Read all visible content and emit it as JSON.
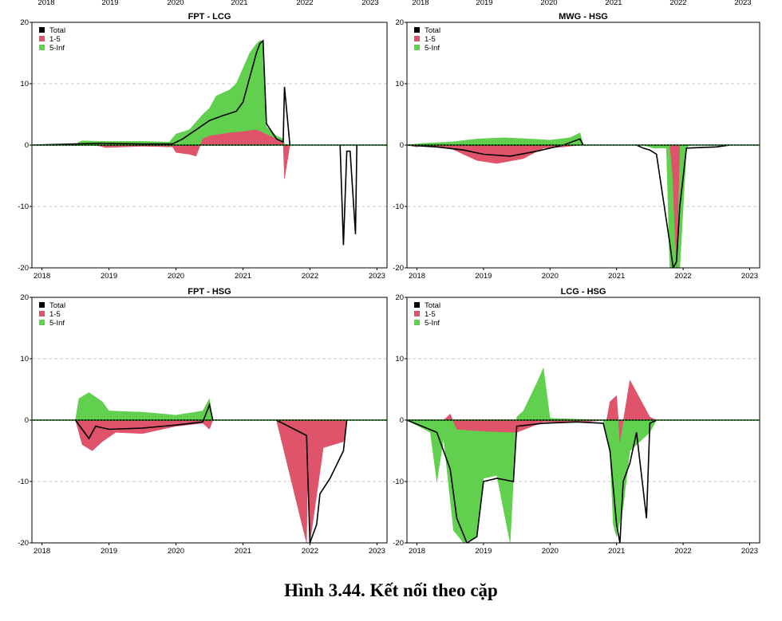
{
  "figure": {
    "caption": "Hình 3.44. Kết nối theo cặp",
    "top_strip_labels": [
      "2018",
      "2019",
      "2020",
      "2021",
      "2022",
      "2023",
      "2018",
      "2019",
      "2020",
      "2021",
      "2022",
      "2023"
    ]
  },
  "colors": {
    "Total": "#000000",
    "1-5": "#df536b",
    "5-Inf": "#61d04f",
    "grid": "#c8c8c8",
    "zero_line": "#0a9b0a"
  },
  "chart_data": [
    {
      "type": "area",
      "title": "FPT - LCG",
      "x_ticks": [
        "2018",
        "2019",
        "2020",
        "2021",
        "2022",
        "2023"
      ],
      "y_ticks": [
        "20",
        "10",
        "0",
        "-10",
        "-20"
      ],
      "ylim": [
        -20,
        20
      ],
      "xlim": [
        2017.85,
        2023.15
      ],
      "grid": "horizontal dashed",
      "legend": [
        "Total",
        "1-5",
        "5-Inf"
      ],
      "legend_position": "top-left",
      "series": [
        {
          "name": "5-Inf",
          "x": [
            2017.85,
            2018.5,
            2018.55,
            2018.6,
            2018.9,
            2019.5,
            2019.9,
            2020.0,
            2020.2,
            2020.4,
            2020.5,
            2020.6,
            2020.8,
            2020.9,
            2021.0,
            2021.1,
            2021.2,
            2021.25,
            2021.3,
            2021.35,
            2021.5,
            2021.6,
            2021.62,
            2021.7,
            2022.5,
            2022.7,
            2023.15
          ],
          "y": [
            0,
            0,
            0.5,
            0.7,
            0.6,
            0.6,
            0.5,
            1.8,
            2.5,
            5.0,
            6.0,
            8.0,
            9.0,
            10.0,
            12.5,
            15.0,
            16.5,
            17.0,
            17.0,
            3.0,
            1.5,
            1.0,
            0.2,
            0,
            0,
            0,
            0
          ]
        },
        {
          "name": "1-5",
          "x": [
            2017.85,
            2018.8,
            2018.95,
            2019.5,
            2019.95,
            2020.0,
            2020.2,
            2020.3,
            2020.4,
            2020.5,
            2020.8,
            2021.0,
            2021.2,
            2021.3,
            2021.5,
            2021.6,
            2021.62,
            2021.7,
            2022.5,
            2023.15
          ],
          "y": [
            0,
            0,
            -0.4,
            -0.2,
            -0.3,
            -1.2,
            -1.5,
            -1.8,
            1.0,
            1.5,
            2.0,
            2.2,
            2.5,
            2.0,
            1.0,
            0.3,
            -5.5,
            0,
            0,
            0
          ]
        },
        {
          "name": "Total",
          "x": [
            2017.85,
            2018.5,
            2018.9,
            2019.5,
            2019.95,
            2020.1,
            2020.3,
            2020.5,
            2020.7,
            2020.9,
            2021.0,
            2021.1,
            2021.2,
            2021.25,
            2021.3,
            2021.35,
            2021.5,
            2021.6,
            2021.62,
            2021.7,
            2022.45,
            2022.5,
            2022.55,
            2022.6,
            2022.68,
            2022.7,
            2023.15
          ],
          "y": [
            0,
            0.2,
            0.3,
            0.2,
            0.2,
            1.0,
            2.5,
            4.0,
            4.8,
            5.5,
            7.0,
            11.0,
            15.0,
            16.5,
            17.0,
            3.5,
            1.0,
            0.5,
            9.5,
            0,
            0,
            -16.3,
            -1.0,
            -1.0,
            -14.5,
            0,
            0
          ]
        }
      ]
    },
    {
      "type": "area",
      "title": "MWG - HSG",
      "x_ticks": [
        "2018",
        "2019",
        "2020",
        "2021",
        "2022",
        "2023"
      ],
      "y_ticks": [
        "20",
        "10",
        "0",
        "-10",
        "-20"
      ],
      "ylim": [
        -20,
        20
      ],
      "xlim": [
        2017.85,
        2023.15
      ],
      "grid": "horizontal dashed",
      "legend": [
        "Total",
        "1-5",
        "5-Inf"
      ],
      "legend_position": "top-left",
      "series": [
        {
          "name": "5-Inf",
          "x": [
            2017.85,
            2018.1,
            2018.5,
            2018.9,
            2019.3,
            2019.7,
            2020.0,
            2020.3,
            2020.45,
            2020.5,
            2021.4,
            2021.55,
            2021.75,
            2021.8,
            2021.9,
            2021.95,
            2022.05,
            2022.1,
            2023.15
          ],
          "y": [
            0,
            0.3,
            0.5,
            1.0,
            1.2,
            1.0,
            0.8,
            1.2,
            2.0,
            0,
            0,
            -0.5,
            -0.5,
            -20,
            -20,
            -20,
            -0.5,
            0,
            0
          ]
        },
        {
          "name": "1-5",
          "x": [
            2017.85,
            2018.0,
            2018.1,
            2018.5,
            2018.9,
            2019.2,
            2019.6,
            2019.9,
            2020.2,
            2020.45,
            2021.8,
            2021.84,
            2021.9,
            2021.95,
            2023.15
          ],
          "y": [
            0,
            -0.3,
            0,
            -0.5,
            -2.5,
            -3.0,
            -2.2,
            -0.5,
            -0.3,
            0,
            0,
            -4.5,
            -20,
            0,
            0
          ]
        },
        {
          "name": "Total",
          "x": [
            2017.85,
            2018.3,
            2018.7,
            2019.0,
            2019.4,
            2019.8,
            2020.2,
            2020.45,
            2020.5,
            2021.3,
            2021.4,
            2021.5,
            2021.6,
            2021.8,
            2021.85,
            2021.9,
            2021.95,
            2022.05,
            2022.5,
            2022.7,
            2023.15
          ],
          "y": [
            0,
            -0.3,
            -0.8,
            -1.5,
            -1.8,
            -1.0,
            0.0,
            1.0,
            0,
            0,
            -0.5,
            -0.8,
            -1.5,
            -16.0,
            -20,
            -19.0,
            -10.0,
            -0.5,
            -0.3,
            0,
            0
          ]
        }
      ]
    },
    {
      "type": "area",
      "title": "FPT - HSG",
      "x_ticks": [
        "2018",
        "2019",
        "2020",
        "2021",
        "2022",
        "2023"
      ],
      "y_ticks": [
        "20",
        "10",
        "0",
        "-10",
        "-20"
      ],
      "ylim": [
        -20,
        20
      ],
      "xlim": [
        2017.85,
        2023.15
      ],
      "grid": "horizontal dashed",
      "legend": [
        "Total",
        "1-5",
        "5-Inf"
      ],
      "legend_position": "top-left",
      "series": [
        {
          "name": "5-Inf",
          "x": [
            2017.85,
            2018.5,
            2018.55,
            2018.7,
            2018.9,
            2019.0,
            2019.5,
            2020.0,
            2020.4,
            2020.5,
            2020.55,
            2021.5,
            2021.95,
            2021.97,
            2022.0,
            2022.5,
            2022.55,
            2023.15
          ],
          "y": [
            0,
            0,
            3.5,
            4.5,
            3.0,
            1.5,
            1.3,
            0.8,
            1.5,
            3.5,
            0,
            0,
            -20,
            -1.5,
            -3.0,
            -3.0,
            0,
            0
          ]
        },
        {
          "name": "1-5",
          "x": [
            2017.85,
            2018.5,
            2018.6,
            2018.75,
            2018.9,
            2019.1,
            2019.5,
            2020.0,
            2020.4,
            2020.5,
            2020.55,
            2021.5,
            2021.95,
            2021.97,
            2022.0,
            2022.2,
            2022.5,
            2022.55,
            2023.15
          ],
          "y": [
            0,
            0,
            -4.0,
            -5.0,
            -3.5,
            -2.0,
            -2.2,
            -1.0,
            -0.5,
            -1.5,
            0,
            0,
            -20,
            -4.0,
            -20,
            -4.5,
            -3.5,
            0,
            0
          ]
        },
        {
          "name": "Total",
          "x": [
            2017.85,
            2018.5,
            2018.6,
            2018.7,
            2018.8,
            2019.0,
            2019.5,
            2020.0,
            2020.4,
            2020.5,
            2020.55,
            2021.5,
            2021.95,
            2022.0,
            2022.1,
            2022.15,
            2022.3,
            2022.5,
            2022.55,
            2023.15
          ],
          "y": [
            0,
            0,
            -1.5,
            -3.0,
            -1.0,
            -1.5,
            -1.3,
            -0.8,
            -0.3,
            2.5,
            0,
            0,
            -2.5,
            -20,
            -17.0,
            -12.0,
            -9.5,
            -5.0,
            0,
            0
          ]
        }
      ]
    },
    {
      "type": "area",
      "title": "LCG - HSG",
      "x_ticks": [
        "2018",
        "2019",
        "2020",
        "2021",
        "2022",
        "2023"
      ],
      "y_ticks": [
        "20",
        "10",
        "0",
        "-10",
        "-20"
      ],
      "ylim": [
        -20,
        20
      ],
      "xlim": [
        2017.85,
        2023.15
      ],
      "grid": "horizontal dashed",
      "legend": [
        "Total",
        "1-5",
        "5-Inf"
      ],
      "legend_position": "top-left",
      "series": [
        {
          "name": "5-Inf",
          "x": [
            2017.85,
            2018.2,
            2018.3,
            2018.4,
            2018.55,
            2018.7,
            2018.9,
            2019.0,
            2019.2,
            2019.4,
            2019.5,
            2019.6,
            2019.8,
            2019.9,
            2020.0,
            2020.8,
            2020.9,
            2020.95,
            2021.0,
            2021.1,
            2021.2,
            2021.5,
            2021.6,
            2023.15
          ],
          "y": [
            0,
            -2.0,
            -10.0,
            -3.0,
            -18.0,
            -20.0,
            -19.0,
            -9.5,
            -9.0,
            -20.0,
            0.5,
            1.5,
            6.0,
            8.5,
            0.3,
            0,
            -5.0,
            -17.0,
            -19.0,
            -14.0,
            -5.0,
            -2.0,
            0,
            0
          ]
        },
        {
          "name": "1-5",
          "x": [
            2017.85,
            2018.4,
            2018.5,
            2018.6,
            2019.0,
            2019.5,
            2019.9,
            2020.5,
            2020.85,
            2020.9,
            2021.0,
            2021.05,
            2021.2,
            2021.5,
            2021.6,
            2023.15
          ],
          "y": [
            0,
            0,
            1.0,
            -1.5,
            -1.8,
            -2.0,
            -0.3,
            -0.3,
            0,
            3.0,
            4.0,
            -3.5,
            6.5,
            0.5,
            0,
            0
          ]
        },
        {
          "name": "Total",
          "x": [
            2017.85,
            2018.3,
            2018.5,
            2018.6,
            2018.75,
            2018.9,
            2019.0,
            2019.2,
            2019.45,
            2019.5,
            2019.9,
            2020.4,
            2020.8,
            2020.9,
            2021.0,
            2021.05,
            2021.1,
            2021.2,
            2021.3,
            2021.45,
            2021.5,
            2021.6,
            2023.15
          ],
          "y": [
            0,
            -2.0,
            -8.0,
            -16.0,
            -20.0,
            -19.0,
            -10.0,
            -9.5,
            -10.0,
            -1.0,
            -0.5,
            -0.3,
            -0.5,
            -5.0,
            -17.0,
            -20.0,
            -10.0,
            -7.0,
            -2.0,
            -16.0,
            -0.5,
            0,
            0
          ]
        }
      ]
    }
  ]
}
